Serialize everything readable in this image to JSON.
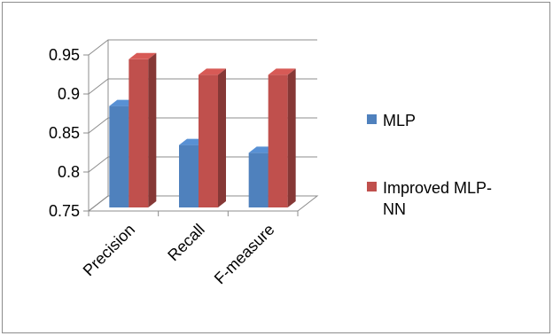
{
  "chart_data": {
    "type": "bar",
    "categories": [
      "Precision",
      "Recall",
      "F-measure"
    ],
    "series": [
      {
        "name": "MLP",
        "values": [
          0.88,
          0.83,
          0.82
        ],
        "color": "#4f81bd"
      },
      {
        "name": "Improved MLP-NN",
        "name_lines": [
          "Improved MLP-",
          "NN"
        ],
        "values": [
          0.94,
          0.92,
          0.92
        ],
        "color": "#c0504d"
      }
    ],
    "yticks": [
      "0.75",
      "0.8",
      "0.85",
      "0.9",
      "0.95"
    ],
    "ylim": [
      0.75,
      0.95
    ],
    "grid": true,
    "legend": "right",
    "three_d": true
  }
}
